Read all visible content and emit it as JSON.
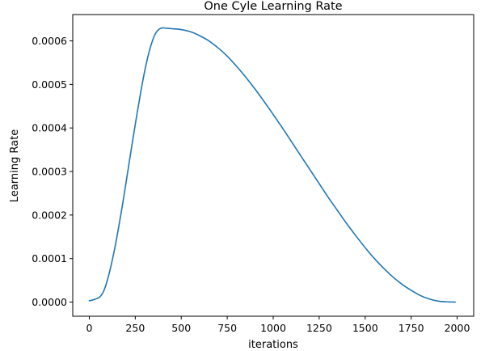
{
  "chart_data": {
    "type": "line",
    "title": "One Cyle Learning Rate",
    "xlabel": "iterations",
    "ylabel": "Learning Rate",
    "xlim": [
      -90,
      2090
    ],
    "ylim": [
      -3.25e-05,
      0.0006605
    ],
    "xticks": [
      0,
      250,
      500,
      750,
      1000,
      1250,
      1500,
      1750,
      2000
    ],
    "xtick_labels": [
      "0",
      "250",
      "500",
      "750",
      "1000",
      "1250",
      "1500",
      "1750",
      "2000"
    ],
    "yticks": [
      0.0,
      0.0001,
      0.0002,
      0.0003,
      0.0004,
      0.0005,
      0.0006
    ],
    "ytick_labels": [
      "0.0000",
      "0.0001",
      "0.0002",
      "0.0003",
      "0.0004",
      "0.0005",
      "0.0006"
    ],
    "grid": false,
    "series": [
      {
        "color": "#1f77b4",
        "x": [
          0,
          20,
          40,
          60,
          80,
          100,
          120,
          140,
          160,
          180,
          200,
          220,
          240,
          260,
          280,
          300,
          320,
          340,
          360,
          380,
          400,
          420,
          450,
          500,
          550,
          600,
          650,
          700,
          750,
          800,
          850,
          900,
          950,
          1000,
          1050,
          1100,
          1150,
          1200,
          1250,
          1300,
          1350,
          1400,
          1450,
          1500,
          1550,
          1600,
          1650,
          1700,
          1750,
          1800,
          1850,
          1900,
          1950,
          1990
        ],
        "y": [
          3e-06,
          5e-06,
          8e-06,
          1.3e-05,
          2.7e-05,
          5.3e-05,
          8.7e-05,
          0.000127,
          0.000173,
          0.000222,
          0.000275,
          0.000329,
          0.000382,
          0.000434,
          0.000483,
          0.000528,
          0.000566,
          0.000596,
          0.000617,
          0.000627,
          0.00063,
          0.000629,
          0.000628,
          0.000626,
          0.000621,
          0.000612,
          0.0006,
          0.000584,
          0.000565,
          0.000542,
          0.000517,
          0.00049,
          0.000461,
          0.000431,
          0.0004,
          0.000368,
          0.000336,
          0.000304,
          0.000272,
          0.00024,
          0.00021,
          0.00018,
          0.000152,
          0.000125,
          0.0001,
          7.8e-05,
          5.8e-05,
          4.1e-05,
          2.7e-05,
          1.5e-05,
          7e-06,
          2e-06,
          5e-07,
          0.0
        ]
      }
    ]
  }
}
